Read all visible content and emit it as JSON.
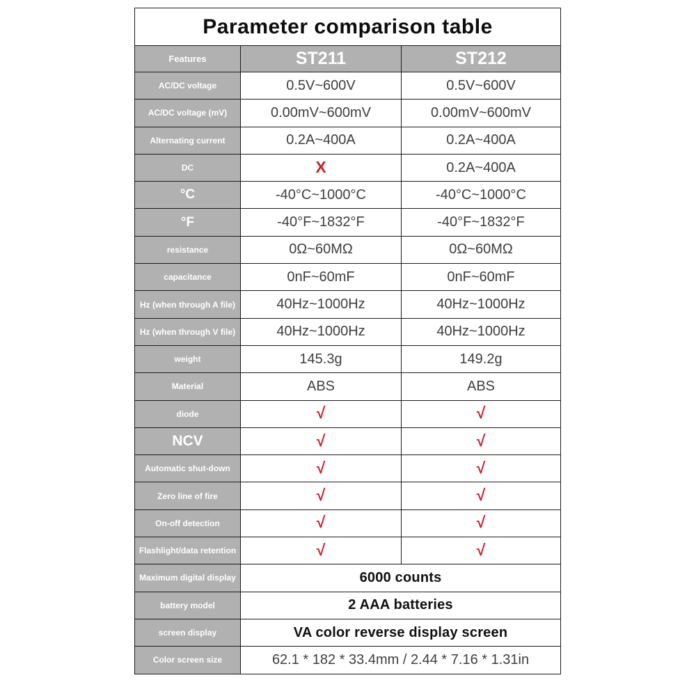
{
  "title": "Parameter comparison table",
  "header": {
    "features": "Features",
    "st211": "ST211",
    "st212": "ST212"
  },
  "symbols": {
    "check": "√",
    "cross": "X"
  },
  "colors": {
    "header_gray": "#b1b1b1",
    "mark_red": "#cd2129",
    "border": "#1a1a1a",
    "value_text": "#3e3e3e"
  },
  "rows": [
    {
      "label": "AC/DC voltage",
      "cells": [
        {
          "text": "0.5V~600V"
        },
        {
          "text": "0.5V~600V"
        }
      ]
    },
    {
      "label": "AC/DC voltage (mV)",
      "cells": [
        {
          "text": "0.00mV~600mV"
        },
        {
          "text": "0.00mV~600mV"
        }
      ]
    },
    {
      "label": "Alternating current",
      "cells": [
        {
          "text": "0.2A~400A"
        },
        {
          "text": "0.2A~400A"
        }
      ]
    },
    {
      "label": "DC",
      "cells": [
        {
          "mark": "cross"
        },
        {
          "text": "0.2A~400A"
        }
      ]
    },
    {
      "label": "°C",
      "label_style": "large",
      "cells": [
        {
          "text": "-40°C~1000°C"
        },
        {
          "text": "-40°C~1000°C"
        }
      ]
    },
    {
      "label": "°F",
      "label_style": "large",
      "cells": [
        {
          "text": "-40°F~1832°F"
        },
        {
          "text": "-40°F~1832°F"
        }
      ]
    },
    {
      "label": "resistance",
      "cells": [
        {
          "text": "0Ω~60MΩ"
        },
        {
          "text": "0Ω~60MΩ"
        }
      ]
    },
    {
      "label": "capacitance",
      "cells": [
        {
          "text": "0nF~60mF"
        },
        {
          "text": "0nF~60mF"
        }
      ]
    },
    {
      "label": "Hz (when through A file)",
      "cells": [
        {
          "text": "40Hz~1000Hz"
        },
        {
          "text": "40Hz~1000Hz"
        }
      ]
    },
    {
      "label": "Hz (when through V file)",
      "cells": [
        {
          "text": "40Hz~1000Hz"
        },
        {
          "text": "40Hz~1000Hz"
        }
      ]
    },
    {
      "label": "weight",
      "cells": [
        {
          "text": "145.3g"
        },
        {
          "text": "149.2g"
        }
      ]
    },
    {
      "label": "Material",
      "cells": [
        {
          "text": "ABS"
        },
        {
          "text": "ABS"
        }
      ]
    },
    {
      "label": "diode",
      "cells": [
        {
          "mark": "check"
        },
        {
          "mark": "check"
        }
      ]
    },
    {
      "label": "NCV",
      "label_style": "xlarge",
      "cells": [
        {
          "mark": "check"
        },
        {
          "mark": "check"
        }
      ]
    },
    {
      "label": "Automatic shut-down",
      "cells": [
        {
          "mark": "check"
        },
        {
          "mark": "check"
        }
      ]
    },
    {
      "label": "Zero line of fire",
      "cells": [
        {
          "mark": "check"
        },
        {
          "mark": "check"
        }
      ]
    },
    {
      "label": "On-off detection",
      "cells": [
        {
          "mark": "check"
        },
        {
          "mark": "check"
        }
      ]
    },
    {
      "label": "Flashlight/data retention",
      "cells": [
        {
          "mark": "check"
        },
        {
          "mark": "check"
        }
      ]
    },
    {
      "label": "Maximum digital display",
      "cells": [
        {
          "text": "6000 counts",
          "span": 2,
          "bold": true
        }
      ]
    },
    {
      "label": "battery model",
      "cells": [
        {
          "text": "2 AAA batteries",
          "span": 2,
          "bold": true
        }
      ]
    },
    {
      "label": "screen display",
      "cells": [
        {
          "text": "VA color reverse display screen",
          "span": 2,
          "bold": true
        }
      ]
    },
    {
      "label": "Color screen size",
      "cells": [
        {
          "text": "62.1 * 182 * 33.4mm  / 2.44 * 7.16 * 1.31in",
          "span": 2
        }
      ]
    }
  ]
}
